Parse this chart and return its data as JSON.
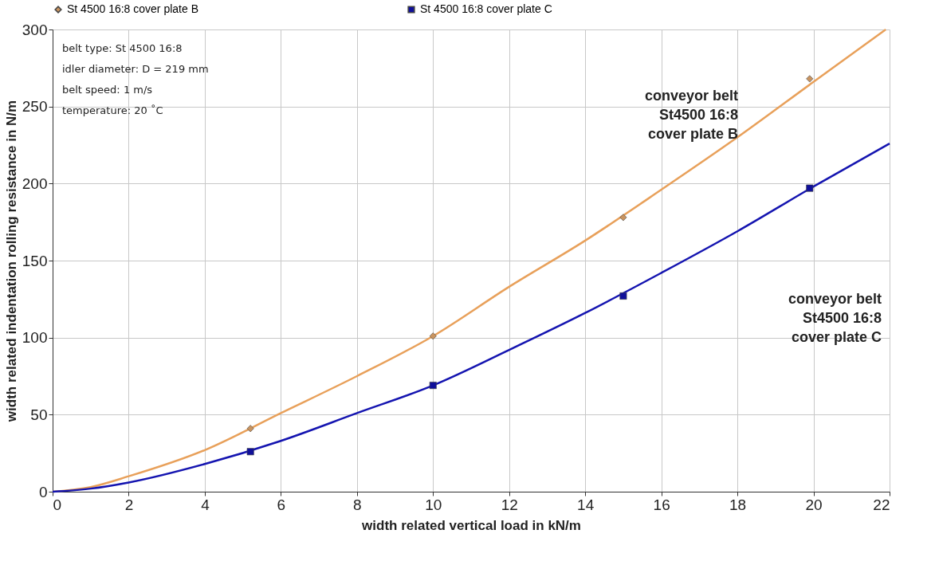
{
  "chart_data": {
    "type": "line",
    "xlabel": "width related vertical load in kN/m",
    "ylabel": "width related indentation rolling resistance in N/m",
    "xlim": [
      0,
      22
    ],
    "xticks": [
      0,
      2,
      4,
      6,
      8,
      10,
      12,
      14,
      16,
      18,
      20,
      22
    ],
    "ylim": [
      0,
      300
    ],
    "yticks": [
      0,
      50,
      100,
      150,
      200,
      250,
      300
    ],
    "grid": true,
    "legend": "top",
    "series": [
      {
        "color": "#e8a05a",
        "x": [
          0,
          1,
          2,
          4,
          6,
          8,
          10,
          12,
          14,
          16,
          18,
          20,
          21.9
        ],
        "values": [
          0,
          3,
          10,
          27,
          51,
          75,
          101,
          133,
          163,
          196,
          230,
          266,
          300
        ]
      },
      {
        "color": "#1414b0",
        "x": [
          0,
          1,
          2,
          4,
          6,
          8,
          10,
          12,
          14,
          16,
          18,
          20,
          22
        ],
        "values": [
          0,
          2,
          6,
          18,
          33,
          51,
          69,
          92,
          116,
          142,
          169,
          198,
          226
        ]
      },
      {
        "type": "scatter",
        "name": "St 4500 16:8 cover plate B",
        "color": "#c99460",
        "marker": "diamond",
        "x": [
          5.2,
          10,
          15,
          19.9
        ],
        "values": [
          41,
          101,
          178,
          268
        ]
      },
      {
        "type": "scatter",
        "name": "St 4500 16:8 cover plate C",
        "color": "#10109a",
        "marker": "square",
        "x": [
          5.2,
          10,
          15,
          19.9
        ],
        "values": [
          26,
          69,
          127,
          197
        ]
      }
    ],
    "annotations": [
      "belt type: St 4500 16:8",
      "idler diameter: D = 219 mm",
      "belt speed: 1 m/s",
      "temperature: 20 ˚C",
      "conveyor belt\nSt4500 16:8\ncover plate B",
      "conveyor belt\nSt4500 16:8\ncover plate C"
    ]
  }
}
